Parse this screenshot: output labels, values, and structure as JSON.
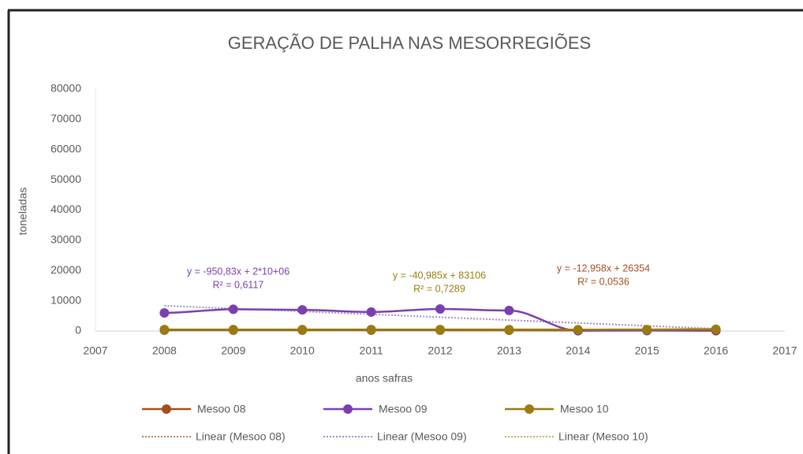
{
  "chart_data": {
    "type": "line",
    "title": "GERAÇÃO DE PALHA NAS MESORREGIÕES",
    "x_label": "anos safras",
    "y_label": "toneladas",
    "x": [
      2008,
      2009,
      2010,
      2011,
      2012,
      2013,
      2014,
      2015,
      2016
    ],
    "xlim": [
      2007,
      2017
    ],
    "xticks": [
      2007,
      2008,
      2009,
      2010,
      2011,
      2012,
      2013,
      2014,
      2015,
      2016,
      2017
    ],
    "ylim": [
      0,
      80000
    ],
    "yticks": [
      0,
      10000,
      20000,
      30000,
      40000,
      50000,
      60000,
      70000,
      80000
    ],
    "grid": false,
    "series": [
      {
        "name": "Mesoo 08",
        "color": "#a0501e",
        "values": [
          300,
          300,
          300,
          300,
          300,
          250,
          200,
          150,
          100
        ]
      },
      {
        "name": "Mesoo 09",
        "color": "#7a3fb0",
        "values": [
          6000,
          7200,
          7000,
          6300,
          7300,
          6800,
          100,
          200,
          300
        ]
      },
      {
        "name": "Mesoo 10",
        "color": "#9a7b10",
        "values": [
          500,
          500,
          500,
          500,
          500,
          500,
          450,
          500,
          600
        ]
      }
    ],
    "trendlines": [
      {
        "name": "Linear (Mesoo 08)",
        "color": "#c08050"
      },
      {
        "name": "Linear (Mesoo 09)",
        "color": "#a58ac8"
      },
      {
        "name": "Linear (Mesoo 10)",
        "color": "#c8b060"
      }
    ],
    "annotations": [
      {
        "lines": [
          "y = -950,83x + 2*10+06",
          "R² = 0,6117"
        ],
        "color": "#7a3fb0"
      },
      {
        "lines": [
          "y = -40,985x + 83106",
          "R² = 0,7289"
        ],
        "color": "#9a7b10"
      },
      {
        "lines": [
          "y = -12,958x + 26354",
          "R² = 0,0536"
        ],
        "color": "#a0501e"
      }
    ]
  }
}
